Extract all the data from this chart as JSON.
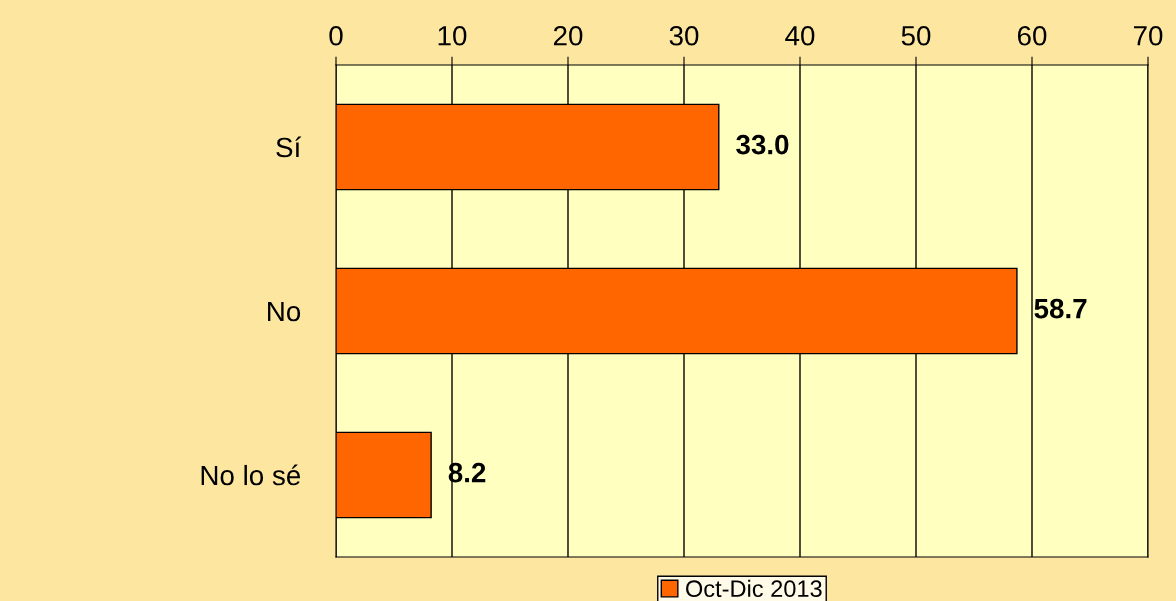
{
  "chart_data": {
    "type": "bar",
    "orientation": "horizontal",
    "categories": [
      "Sí",
      "No",
      "No lo sé"
    ],
    "series": [
      {
        "name": "Oct-Dic 2013",
        "color": "#ff6600",
        "values": [
          33.0,
          58.7,
          8.2
        ],
        "value_labels": [
          "33.0",
          "58.7",
          "8.2"
        ]
      }
    ],
    "xlim": [
      0,
      70
    ],
    "xticks": [
      0,
      10,
      20,
      30,
      40,
      50,
      60,
      70
    ],
    "grid": "x",
    "legend": "bottom"
  }
}
